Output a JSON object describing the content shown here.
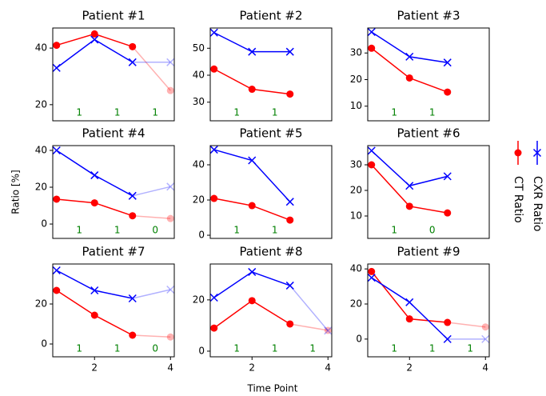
{
  "xlabel": "Time Point",
  "ylabel": "Ratio [%]",
  "chart_data": [
    {
      "type": "line",
      "title": "Patient #1",
      "x": [
        1,
        2,
        3,
        4
      ],
      "xlim": [
        0.9,
        4.1
      ],
      "ylim": [
        14.3,
        47.1
      ],
      "yticks": [
        20,
        40
      ],
      "series": [
        {
          "name": "CT Ratio",
          "color": "#ff0000",
          "marker": "o",
          "values": [
            41,
            45,
            40.5,
            25
          ]
        },
        {
          "name": "CXR Ratio",
          "color": "#0000ff",
          "marker": "x",
          "values": [
            33,
            43,
            35,
            35
          ]
        }
      ],
      "annotations": [
        {
          "x": 1.6,
          "text": "1"
        },
        {
          "x": 2.6,
          "text": "1"
        },
        {
          "x": 3.6,
          "text": "1"
        }
      ]
    },
    {
      "type": "line",
      "title": "Patient #2",
      "x": [
        1,
        2,
        3,
        4
      ],
      "xlim": [
        0.9,
        4.1
      ],
      "ylim": [
        23.1,
        57.5
      ],
      "yticks": [
        30,
        40,
        50
      ],
      "series": [
        {
          "name": "CT Ratio",
          "color": "#ff0000",
          "marker": "o",
          "values": [
            42.3,
            34.8,
            33,
            null
          ]
        },
        {
          "name": "CXR Ratio",
          "color": "#0000ff",
          "marker": "x",
          "values": [
            55.8,
            48.7,
            48.7,
            null
          ]
        }
      ],
      "annotations": [
        {
          "x": 1.6,
          "text": "1"
        },
        {
          "x": 2.6,
          "text": "1"
        }
      ]
    },
    {
      "type": "line",
      "title": "Patient #3",
      "x": [
        1,
        2,
        3,
        4
      ],
      "xlim": [
        0.9,
        4.1
      ],
      "ylim": [
        4.5,
        39.4
      ],
      "yticks": [
        10,
        20,
        30
      ],
      "series": [
        {
          "name": "CT Ratio",
          "color": "#ff0000",
          "marker": "o",
          "values": [
            31.8,
            20.6,
            15.3,
            null
          ]
        },
        {
          "name": "CXR Ratio",
          "color": "#0000ff",
          "marker": "x",
          "values": [
            37.9,
            28.6,
            26.4,
            null
          ]
        }
      ],
      "annotations": [
        {
          "x": 1.6,
          "text": "1"
        },
        {
          "x": 2.6,
          "text": "1"
        }
      ]
    },
    {
      "type": "line",
      "title": "Patient #4",
      "x": [
        1,
        2,
        3,
        4
      ],
      "xlim": [
        0.9,
        4.1
      ],
      "ylim": [
        -7.8,
        42.6
      ],
      "yticks": [
        0,
        20,
        40
      ],
      "series": [
        {
          "name": "CT Ratio",
          "color": "#ff0000",
          "marker": "o",
          "values": [
            13.5,
            11.5,
            4.5,
            3
          ]
        },
        {
          "name": "CXR Ratio",
          "color": "#0000ff",
          "marker": "x",
          "values": [
            40,
            26.5,
            15.3,
            20.3
          ]
        }
      ],
      "annotations": [
        {
          "x": 1.6,
          "text": "1"
        },
        {
          "x": 2.6,
          "text": "1"
        },
        {
          "x": 3.6,
          "text": "0"
        }
      ]
    },
    {
      "type": "line",
      "title": "Patient #5",
      "x": [
        1,
        2,
        3,
        4
      ],
      "xlim": [
        0.9,
        4.1
      ],
      "ylim": [
        -1.8,
        50.9
      ],
      "yticks": [
        0,
        20,
        40
      ],
      "series": [
        {
          "name": "CT Ratio",
          "color": "#ff0000",
          "marker": "o",
          "values": [
            20.9,
            16.8,
            8.6,
            null
          ]
        },
        {
          "name": "CXR Ratio",
          "color": "#0000ff",
          "marker": "x",
          "values": [
            48.6,
            42.5,
            19,
            null
          ]
        }
      ],
      "annotations": [
        {
          "x": 1.6,
          "text": "1"
        },
        {
          "x": 2.6,
          "text": "1"
        }
      ]
    },
    {
      "type": "line",
      "title": "Patient #6",
      "x": [
        1,
        2,
        3,
        4
      ],
      "xlim": [
        0.9,
        4.1
      ],
      "ylim": [
        1.25,
        37.5
      ],
      "yticks": [
        10,
        20,
        30
      ],
      "series": [
        {
          "name": "CT Ratio",
          "color": "#ff0000",
          "marker": "o",
          "values": [
            30,
            13.8,
            11.2,
            null
          ]
        },
        {
          "name": "CXR Ratio",
          "color": "#0000ff",
          "marker": "x",
          "values": [
            35.5,
            21.8,
            25.5,
            null
          ]
        }
      ],
      "annotations": [
        {
          "x": 1.6,
          "text": "1"
        },
        {
          "x": 2.6,
          "text": "0"
        }
      ]
    },
    {
      "type": "line",
      "title": "Patient #7",
      "x": [
        1,
        2,
        3,
        4
      ],
      "xlim": [
        0.9,
        4.1
      ],
      "ylim": [
        -6.4,
        40
      ],
      "yticks": [
        0,
        20
      ],
      "xticks": [
        2,
        4
      ],
      "series": [
        {
          "name": "CT Ratio",
          "color": "#ff0000",
          "marker": "o",
          "values": [
            26.8,
            14.4,
            4.4,
            3.5
          ]
        },
        {
          "name": "CXR Ratio",
          "color": "#0000ff",
          "marker": "x",
          "values": [
            36.8,
            26.8,
            22.8,
            27.2
          ]
        }
      ],
      "annotations": [
        {
          "x": 1.6,
          "text": "1"
        },
        {
          "x": 2.6,
          "text": "1"
        },
        {
          "x": 3.6,
          "text": "0"
        }
      ]
    },
    {
      "type": "line",
      "title": "Patient #8",
      "x": [
        1,
        2,
        3,
        4
      ],
      "xlim": [
        0.9,
        4.1
      ],
      "ylim": [
        -2.2,
        34
      ],
      "yticks": [
        0,
        20
      ],
      "xticks": [
        2,
        4
      ],
      "series": [
        {
          "name": "CT Ratio",
          "color": "#ff0000",
          "marker": "o",
          "values": [
            9,
            19.7,
            10.6,
            8.1
          ]
        },
        {
          "name": "CXR Ratio",
          "color": "#0000ff",
          "marker": "x",
          "values": [
            20.9,
            30.9,
            25.6,
            8
          ]
        }
      ],
      "annotations": [
        {
          "x": 1.6,
          "text": "1"
        },
        {
          "x": 2.6,
          "text": "1"
        },
        {
          "x": 3.6,
          "text": "1"
        }
      ]
    },
    {
      "type": "line",
      "title": "Patient #9",
      "x": [
        1,
        2,
        3,
        4
      ],
      "xlim": [
        0.9,
        4.1
      ],
      "ylim": [
        -10.1,
        42.8
      ],
      "yticks": [
        0,
        20,
        40
      ],
      "xticks": [
        2,
        4
      ],
      "series": [
        {
          "name": "CT Ratio",
          "color": "#ff0000",
          "marker": "o",
          "values": [
            38.5,
            11.5,
            9.5,
            6.9
          ]
        },
        {
          "name": "CXR Ratio",
          "color": "#0000ff",
          "marker": "x",
          "values": [
            35,
            21,
            0,
            0
          ]
        }
      ],
      "annotations": [
        {
          "x": 1.6,
          "text": "1"
        },
        {
          "x": 2.6,
          "text": "1"
        },
        {
          "x": 3.6,
          "text": "1"
        }
      ]
    }
  ]
}
